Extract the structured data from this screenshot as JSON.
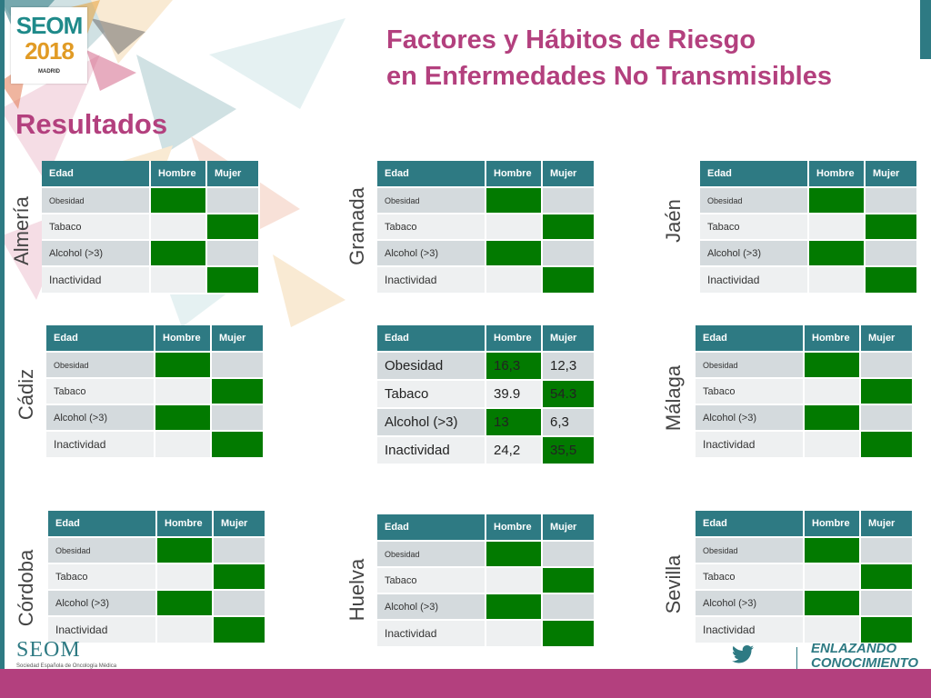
{
  "logo": {
    "brand": "SEOM",
    "year": "2018",
    "city": "MADRID"
  },
  "title": {
    "line1": "Factores y Hábitos de Riesgo",
    "line2": "en Enfermedades No Transmisibles"
  },
  "section": "Resultados",
  "columns": {
    "label": "Edad",
    "male": "Hombre",
    "female": "Mujer"
  },
  "factors": {
    "obesity": "Obesidad",
    "tobacco": "Tabaco",
    "alcohol": "Alcohol (>3)",
    "inactivity": "Inactividad"
  },
  "cities": {
    "almeria": "Almería",
    "granada": "Granada",
    "jaen": "Jaén",
    "cadiz": "Cádiz",
    "malaga": "Málaga",
    "cordoba": "Córdoba",
    "huelva": "Huelva",
    "sevilla": "Sevilla"
  },
  "center_values": {
    "obesity": {
      "male": "16,3",
      "female": "12,3"
    },
    "tobacco": {
      "male": "39.9",
      "female": "54.3"
    },
    "alcohol": {
      "male": "13",
      "female": "6,3"
    },
    "inactivity": {
      "male": "24,2",
      "female": "35,5"
    }
  },
  "colors": {
    "header": "#2e7a83",
    "highlight": "#027a00",
    "title": "#b3407e",
    "row_dark": "#d4dadd",
    "row_light": "#eef0f1"
  },
  "footer": {
    "brand": "SEOM",
    "sub": "Sociedad Española de Oncología Médica",
    "slogan": "ENLAZANDO CONOCIMIENTO",
    "social_icon": "twitter-icon"
  }
}
